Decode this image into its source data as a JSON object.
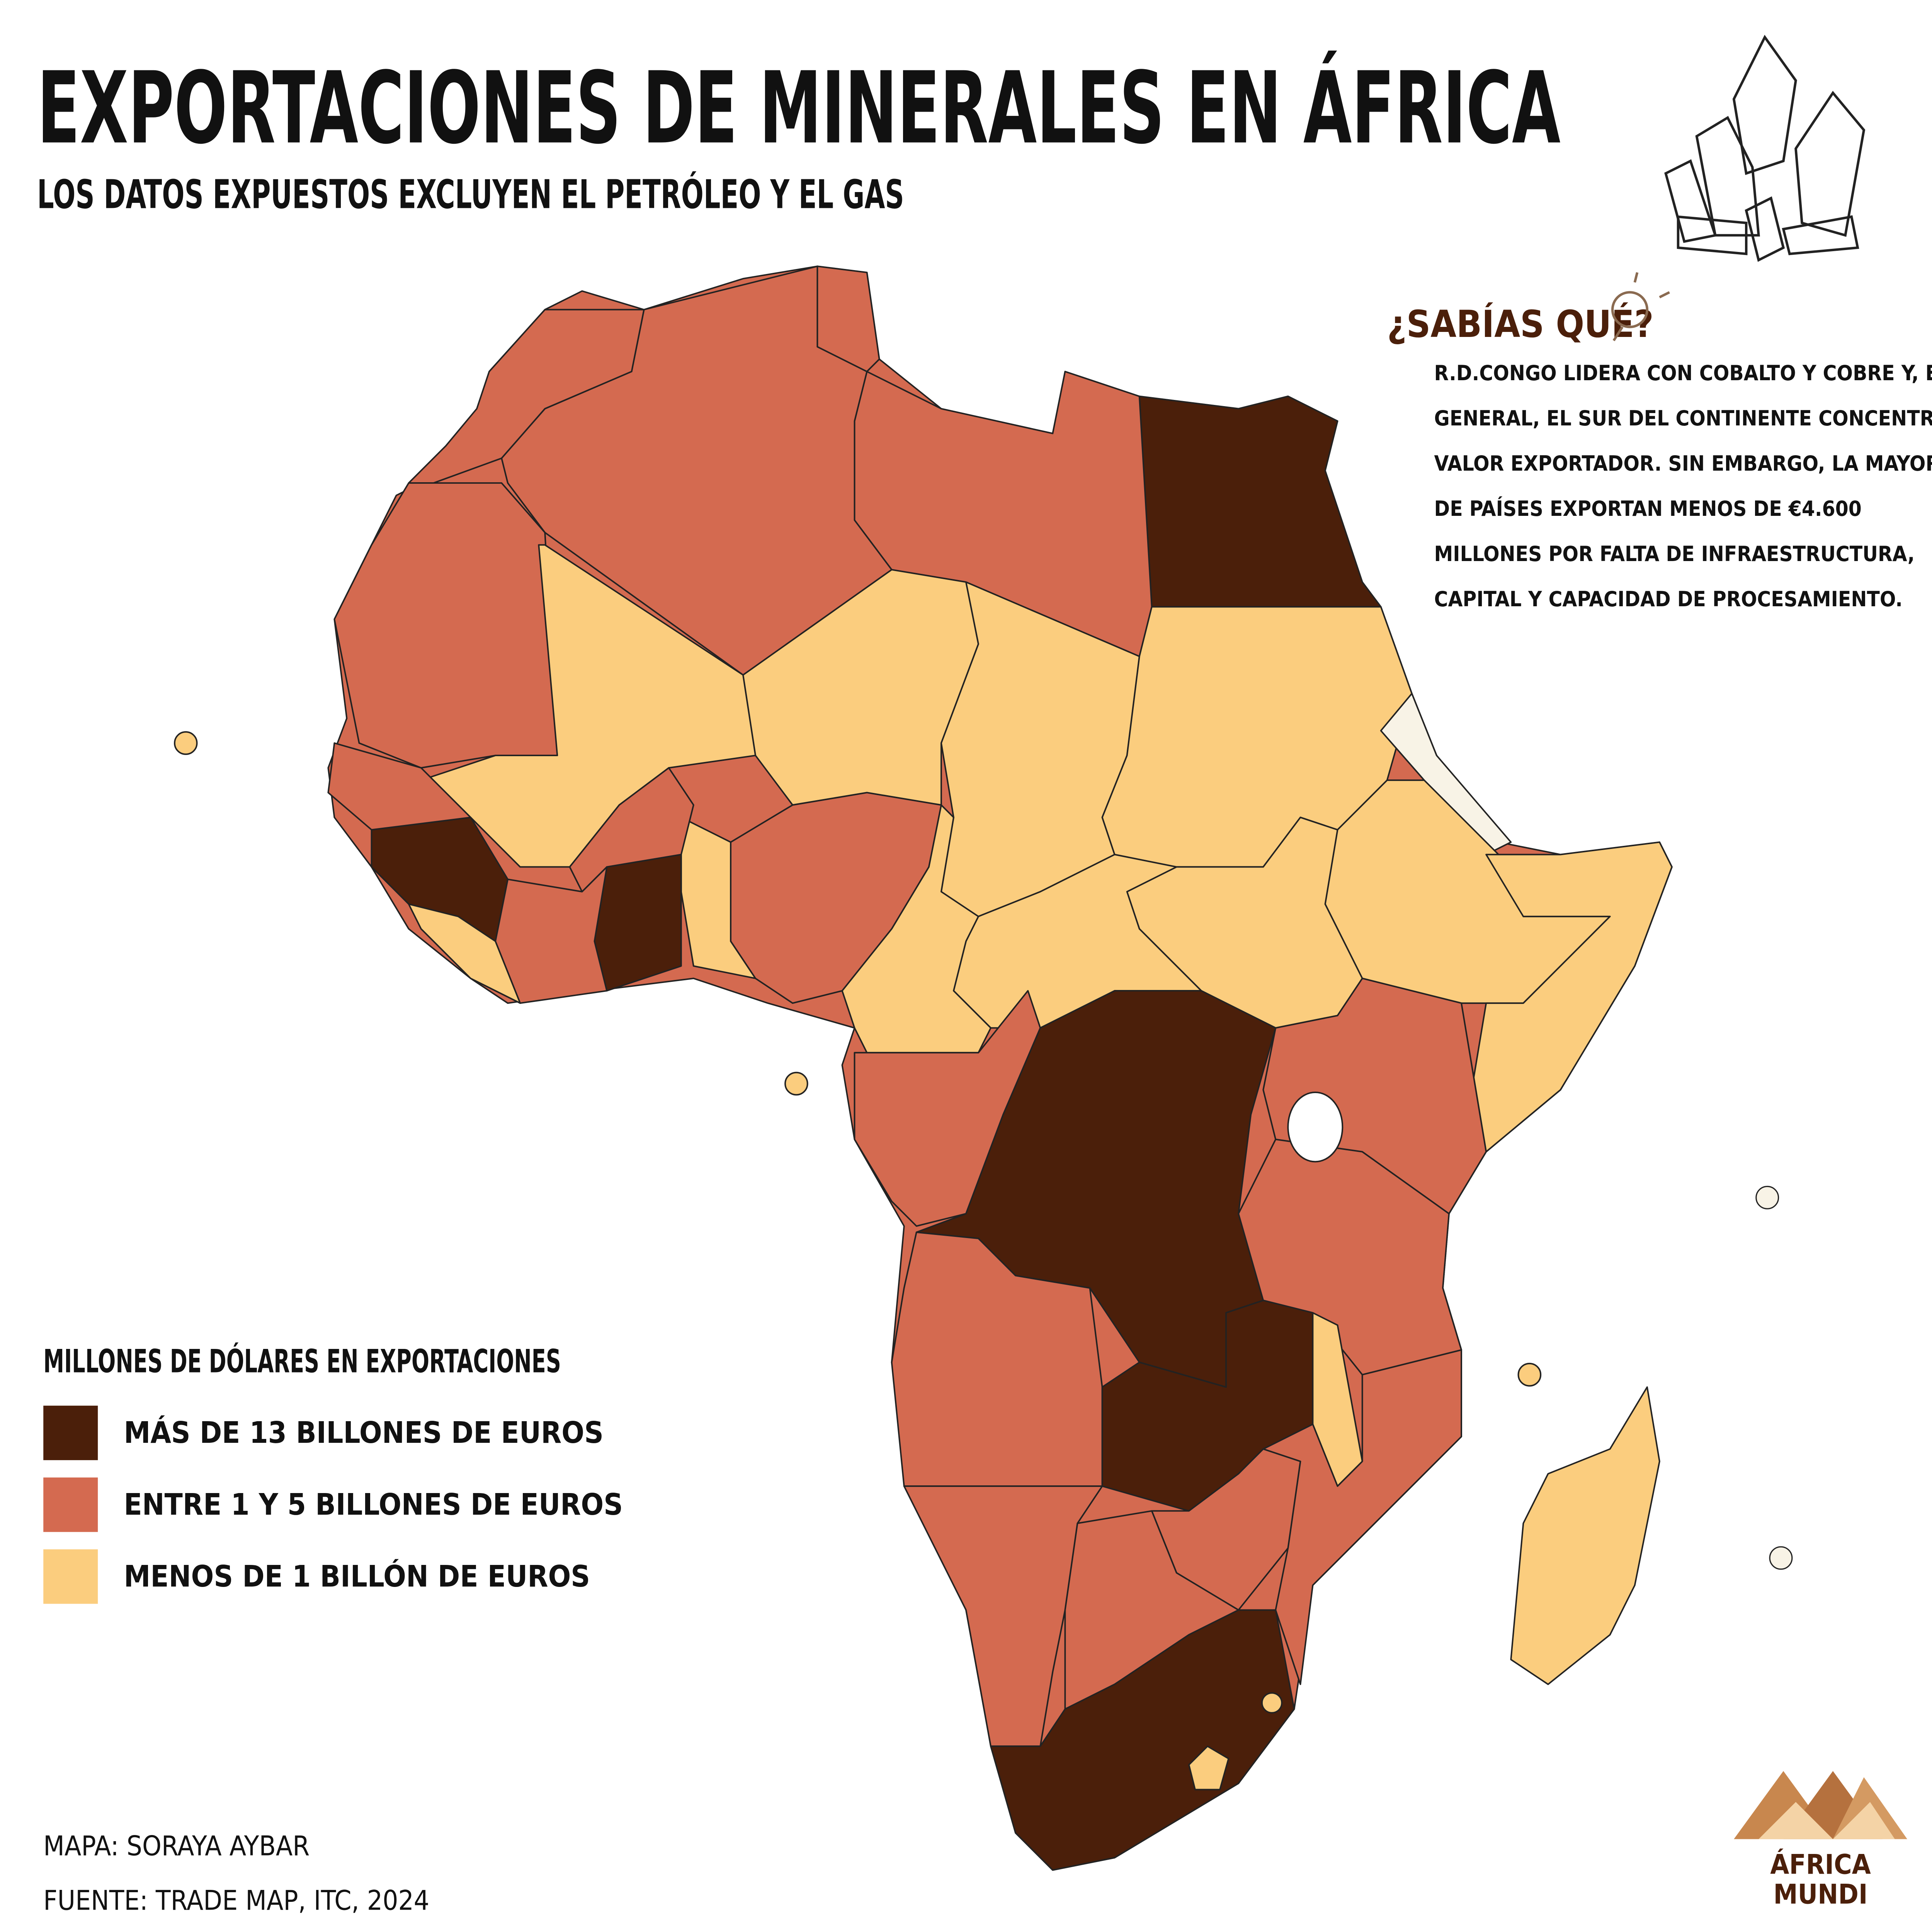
{
  "title": "EXPORTACIONES DE MINERALES EN ÁFRICA",
  "subtitle": "LOS DATOS EXPUESTOS EXCLUYEN EL PETRÓLEO Y EL GAS",
  "did_you_know": {
    "heading": "¿SABÍAS QUÉ?",
    "lines": [
      "R.D.CONGO LIDERA CON COBALTO Y COBRE Y, EN",
      "GENERAL, EL SUR DEL CONTINENTE CONCENTRA",
      "VALOR EXPORTADOR. SIN EMBARGO, LA MAYORÍA",
      "DE PAÍSES EXPORTAN MENOS DE €4.600",
      "MILLONES POR FALTA DE INFRAESTRUCTURA,",
      "CAPITAL Y CAPACIDAD DE PROCESAMIENTO."
    ]
  },
  "legend": {
    "title": "MILLONES DE DÓLARES EN EXPORTACIONES",
    "items": [
      {
        "label": "MÁS DE 13 BILLONES DE EUROS",
        "color": "#4b1f0a"
      },
      {
        "label": "ENTRE 1 Y 5 BILLONES DE EUROS",
        "color": "#d46a50"
      },
      {
        "label": "MENOS DE 1 BILLÓN DE EUROS",
        "color": "#fbcd7e"
      }
    ]
  },
  "credits": [
    "MAPA: SORAYA AYBAR",
    "FUENTE: TRADE MAP, ITC, 2024"
  ],
  "logo": [
    "ÁFRICA",
    "MUNDI"
  ]
}
